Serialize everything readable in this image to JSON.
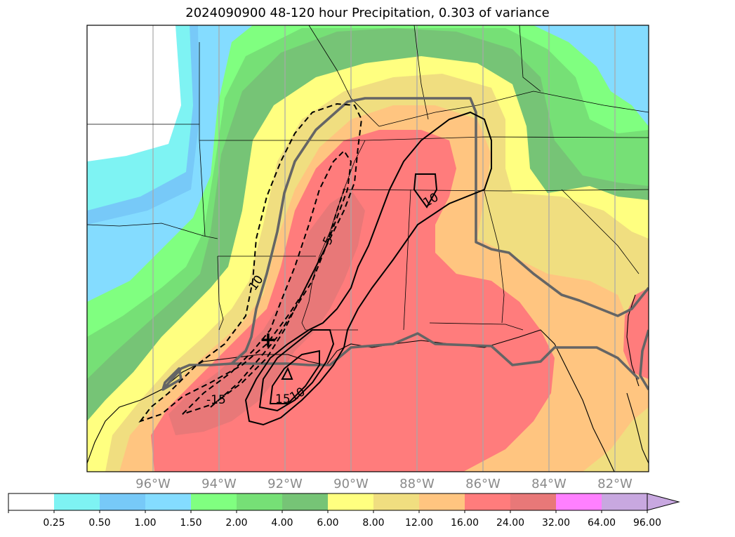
{
  "title": "2024090900 48-120 hour Precipitation, 0.303 of variance",
  "longitude_labels": [
    "96°W",
    "94°W",
    "92°W",
    "90°W",
    "88°W",
    "86°W",
    "84°W",
    "82°W"
  ],
  "contour_labels": [
    "10",
    "5",
    "-15",
    "15",
    "10",
    "10"
  ],
  "colorbar": {
    "labels": [
      "0.25",
      "0.50",
      "1.00",
      "1.50",
      "2.00",
      "4.00",
      "6.00",
      "8.00",
      "12.00",
      "16.00",
      "24.00",
      "32.00",
      "64.00",
      "96.00"
    ],
    "colors": [
      "#ffffff",
      "#7ef3f3",
      "#77c9f8",
      "#84dcff",
      "#80ff80",
      "#76e076",
      "#76c476",
      "#ffff80",
      "#f0de80",
      "#ffc580",
      "#ff7c7c",
      "#e87878",
      "#ff80ff",
      "#c8a8e0"
    ],
    "overflow_color": "#c8a8e0"
  },
  "marker": "+"
}
